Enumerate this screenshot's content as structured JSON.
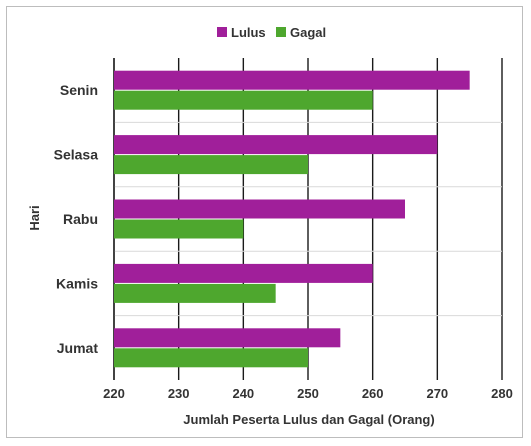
{
  "chart_data": {
    "type": "bar",
    "orientation": "horizontal",
    "categories": [
      "Senin",
      "Selasa",
      "Rabu",
      "Kamis",
      "Jumat"
    ],
    "series": [
      {
        "name": "Lulus",
        "color": "#a01f9a",
        "values": [
          275,
          270,
          265,
          260,
          255
        ]
      },
      {
        "name": "Gagal",
        "color": "#4ea72e",
        "values": [
          260,
          250,
          240,
          245,
          250
        ]
      }
    ],
    "xlabel": "Jumlah Peserta Lulus dan Gagal (Orang)",
    "ylabel": "Hari",
    "xlim": [
      220,
      280
    ],
    "xticks": [
      "220",
      "230",
      "240",
      "250",
      "260",
      "270",
      "280"
    ],
    "grid": true,
    "legend_position": "top"
  }
}
